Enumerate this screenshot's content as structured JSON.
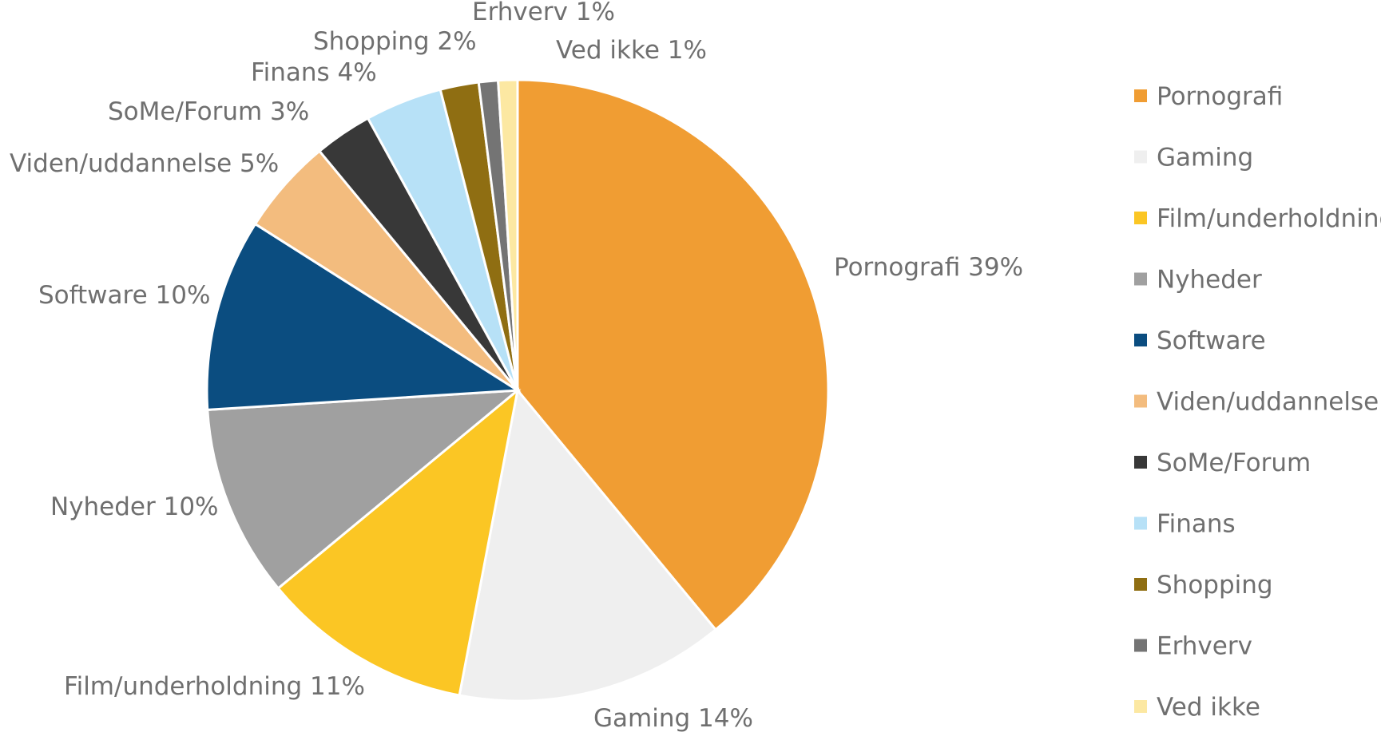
{
  "chart_data": {
    "type": "pie",
    "title": "",
    "categories": [
      "Pornografi",
      "Gaming",
      "Film/underholdning",
      "Nyheder",
      "Software",
      "Viden/uddannelse",
      "SoMe/Forum",
      "Finans",
      "Shopping",
      "Erhverv",
      "Ved ikke"
    ],
    "values": [
      39,
      14,
      11,
      10,
      10,
      5,
      3,
      4,
      2,
      1,
      1
    ],
    "data_labels": [
      "Pornografi 39%",
      "Gaming 14%",
      "Film/underholdning 11%",
      "Nyheder 10%",
      "Software 10%",
      "Viden/uddannelse 5%",
      "SoMe/Forum 3%",
      "Finans 4%",
      "Shopping 2%",
      "Erhverv 1%",
      "Ved ikke 1%"
    ],
    "colors": [
      "#F09D33",
      "#EFEFEF",
      "#FBC624",
      "#A0A0A0",
      "#0B4D80",
      "#F3BC7E",
      "#383838",
      "#B7E1F7",
      "#8F6E12",
      "#747474",
      "#FCE8A2"
    ],
    "legend_position": "right"
  }
}
